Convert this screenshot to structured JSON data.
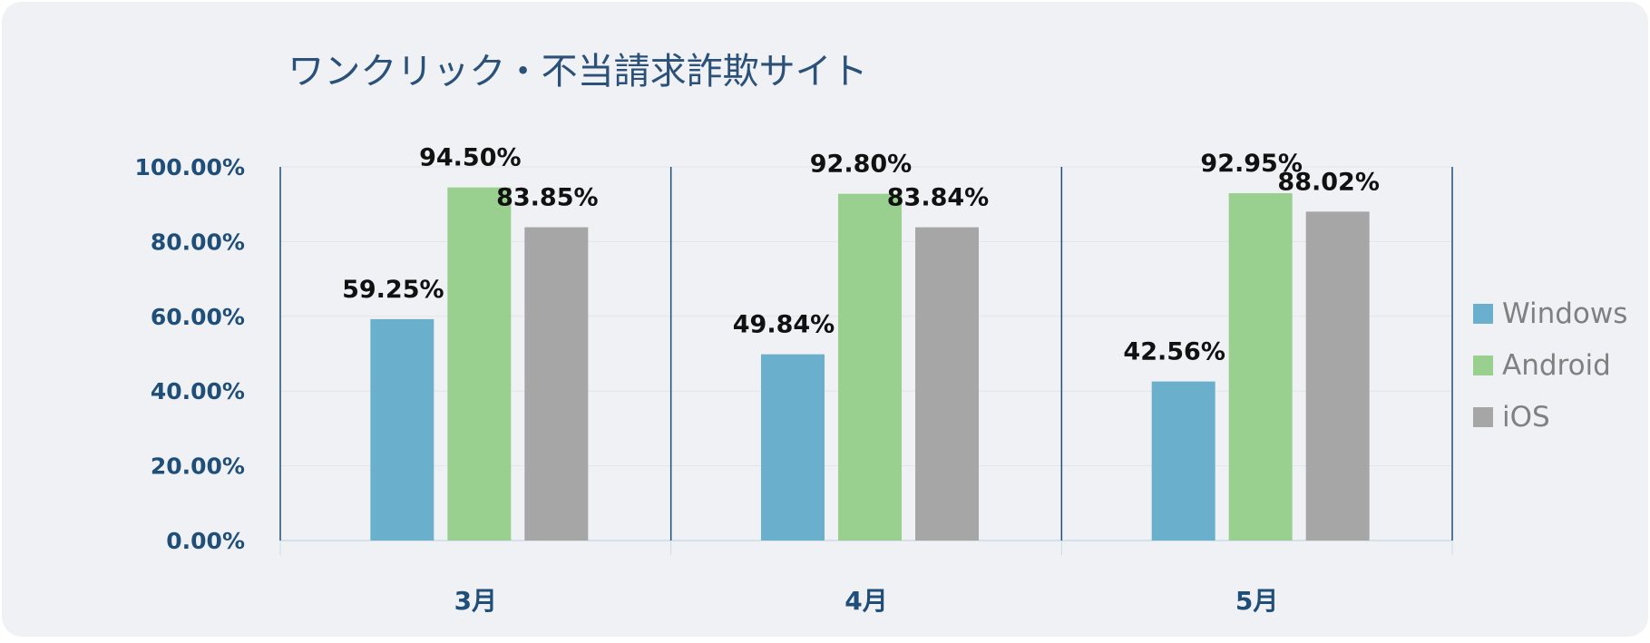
{
  "chart_data": {
    "type": "bar",
    "title": "ワンクリック・不当請求詐欺サイト",
    "categories": [
      "3月",
      "4月",
      "5月"
    ],
    "series": [
      {
        "name": "Windows",
        "color": "#6ab0cc",
        "values": [
          59.25,
          49.84,
          42.56
        ],
        "labels": [
          "59.25%",
          "49.84%",
          "42.56%"
        ]
      },
      {
        "name": "Android",
        "color": "#99cf8f",
        "values": [
          94.5,
          92.8,
          92.95
        ],
        "labels": [
          "94.50%",
          "92.80%",
          "92.95%"
        ]
      },
      {
        "name": "iOS",
        "color": "#a6a6a6",
        "values": [
          83.85,
          83.84,
          88.02
        ],
        "labels": [
          "83.85%",
          "83.84%",
          "88.02%"
        ]
      }
    ],
    "ylim": [
      0,
      100
    ],
    "yticks": [
      {
        "value": 0,
        "label": "0.00%"
      },
      {
        "value": 20,
        "label": "20.00%"
      },
      {
        "value": 40,
        "label": "40.00%"
      },
      {
        "value": 60,
        "label": "60.00%"
      },
      {
        "value": 80,
        "label": "80.00%"
      },
      {
        "value": 100,
        "label": "100.00%"
      }
    ],
    "xlabel": "",
    "ylabel": "",
    "grid": true,
    "legend_position": "right",
    "colors": {
      "background": "#f0f1f5",
      "axis_text": "#1f4e79",
      "divider": "#1f4e79",
      "gridline": "#e3e5ea"
    }
  }
}
